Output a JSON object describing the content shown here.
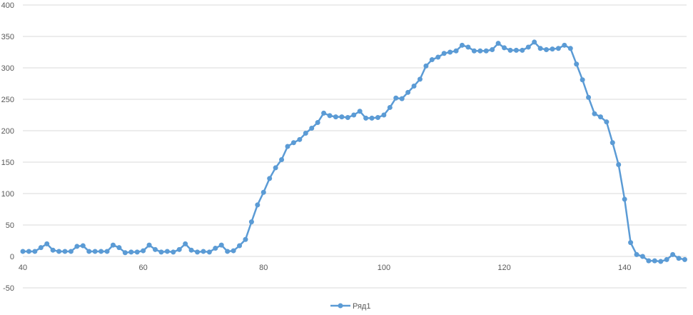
{
  "chart_data": {
    "type": "line",
    "title": "",
    "xlabel": "",
    "ylabel": "",
    "xlim": [
      40,
      150.3
    ],
    "ylim": [
      -50,
      400
    ],
    "x_ticks": [
      40,
      60,
      80,
      100,
      120,
      140
    ],
    "y_ticks": [
      -50,
      0,
      50,
      100,
      150,
      200,
      250,
      300,
      350,
      400
    ],
    "grid": "horizontal",
    "legend": "bottom",
    "series": [
      {
        "name": "Ряд1",
        "color": "#5B9BD5",
        "marker": "circle",
        "x_start": 40,
        "x_step": 1,
        "values": [
          8,
          8,
          8,
          14,
          20,
          10,
          8,
          8,
          8,
          16,
          17,
          8,
          8,
          8,
          8,
          18,
          14,
          6,
          7,
          7,
          9,
          18,
          11,
          7,
          8,
          7,
          11,
          20,
          10,
          7,
          8,
          7,
          13,
          18,
          8,
          9,
          17,
          27,
          55,
          82,
          102,
          124,
          141,
          154,
          175,
          181,
          186,
          196,
          204,
          213,
          228,
          224,
          222,
          222,
          221,
          225,
          231,
          220,
          220,
          221,
          225,
          237,
          252,
          251,
          261,
          271,
          282,
          303,
          313,
          317,
          323,
          325,
          327,
          336,
          333,
          327,
          327,
          327,
          329,
          339,
          332,
          328,
          328,
          328,
          333,
          341,
          331,
          329,
          330,
          331,
          336,
          331,
          306,
          281,
          253,
          227,
          222,
          214,
          181,
          146,
          91,
          22,
          3,
          0,
          -7,
          -7,
          -8,
          -5,
          3,
          -3,
          -5
        ]
      }
    ]
  }
}
